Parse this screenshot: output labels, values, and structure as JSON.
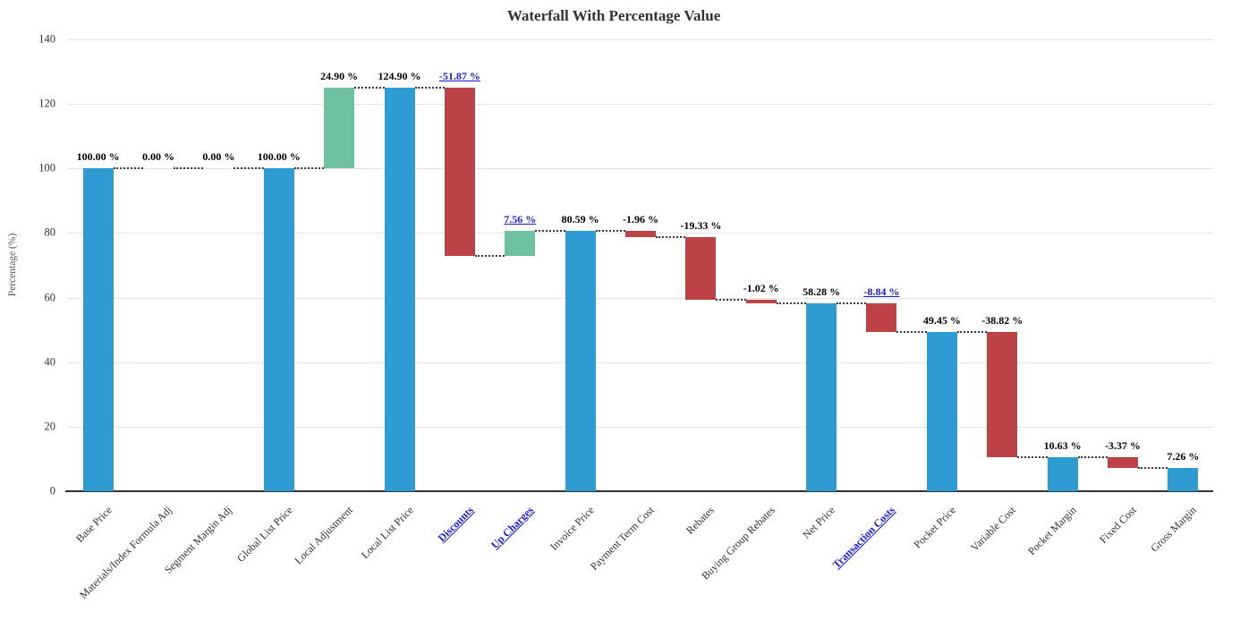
{
  "chart_data": {
    "type": "waterfall-bar",
    "title": "Waterfall With Percentage Value",
    "xlabel": "",
    "ylabel": "Percentage (%)",
    "ylim": [
      0,
      140
    ],
    "yticks": [
      0,
      20,
      40,
      60,
      80,
      100,
      120,
      140
    ],
    "grid": true,
    "legend": false,
    "colors": {
      "total_bar": "#2f9bd3",
      "increase_bar": "#6ec2a2",
      "decrease_bar": "#bd4245",
      "link_text": "#1b1be0",
      "gridline": "#e4e4e4",
      "axis_line": "#333333",
      "connector": "#3a3a3a",
      "value_label_text": "#000000",
      "tick_text": "#333333",
      "title_text": "#333333"
    },
    "bars": [
      {
        "category": "Base Price",
        "value": 100.0,
        "value_label": "100.00 %",
        "start": 0,
        "end": 100.0,
        "kind": "total",
        "link": false
      },
      {
        "category": "Materials/Index Formula Adj",
        "value": 0.0,
        "value_label": "0.00 %",
        "start": 100.0,
        "end": 100.0,
        "kind": "zero",
        "link": false
      },
      {
        "category": "Segment Margin Adj",
        "value": 0.0,
        "value_label": "0.00 %",
        "start": 100.0,
        "end": 100.0,
        "kind": "zero",
        "link": false
      },
      {
        "category": "Global List Price",
        "value": 100.0,
        "value_label": "100.00 %",
        "start": 0,
        "end": 100.0,
        "kind": "total",
        "link": false
      },
      {
        "category": "Local Adjustment",
        "value": 24.9,
        "value_label": "24.90 %",
        "start": 100.0,
        "end": 124.9,
        "kind": "increase",
        "link": false
      },
      {
        "category": "Local List Price",
        "value": 124.9,
        "value_label": "124.90 %",
        "start": 0,
        "end": 124.9,
        "kind": "total",
        "link": false
      },
      {
        "category": "Discounts",
        "value": -51.87,
        "value_label": "-51.87 %",
        "start": 124.9,
        "end": 73.03,
        "kind": "decrease",
        "link": true
      },
      {
        "category": "Up Charges",
        "value": 7.56,
        "value_label": "7.56 %",
        "start": 73.03,
        "end": 80.59,
        "kind": "increase",
        "link": true
      },
      {
        "category": "Invoice Price",
        "value": 80.59,
        "value_label": "80.59 %",
        "start": 0,
        "end": 80.59,
        "kind": "total",
        "link": false
      },
      {
        "category": "Payment Term Cost",
        "value": -1.96,
        "value_label": "-1.96 %",
        "start": 80.59,
        "end": 78.63,
        "kind": "decrease",
        "link": false
      },
      {
        "category": "Rebates",
        "value": -19.33,
        "value_label": "-19.33 %",
        "start": 78.63,
        "end": 59.3,
        "kind": "decrease",
        "link": false
      },
      {
        "category": "Buying Group Rebates",
        "value": -1.02,
        "value_label": "-1.02 %",
        "start": 59.3,
        "end": 58.28,
        "kind": "decrease",
        "link": false
      },
      {
        "category": "Net Price",
        "value": 58.28,
        "value_label": "58.28 %",
        "start": 0,
        "end": 58.28,
        "kind": "total",
        "link": false
      },
      {
        "category": "Transaction Costs",
        "value": -8.84,
        "value_label": "-8.84 %",
        "start": 58.28,
        "end": 49.44,
        "kind": "decrease",
        "link": true
      },
      {
        "category": "Pocket Price",
        "value": 49.45,
        "value_label": "49.45 %",
        "start": 0,
        "end": 49.45,
        "kind": "total",
        "link": false
      },
      {
        "category": "Variable Cost",
        "value": -38.82,
        "value_label": "-38.82 %",
        "start": 49.45,
        "end": 10.63,
        "kind": "decrease",
        "link": false
      },
      {
        "category": "Pocket Margin",
        "value": 10.63,
        "value_label": "10.63 %",
        "start": 0,
        "end": 10.63,
        "kind": "total",
        "link": false
      },
      {
        "category": "Fixed Cost",
        "value": -3.37,
        "value_label": "-3.37 %",
        "start": 10.63,
        "end": 7.26,
        "kind": "decrease",
        "link": false
      },
      {
        "category": "Gross Margin",
        "value": 7.26,
        "value_label": "7.26 %",
        "start": 0,
        "end": 7.26,
        "kind": "total",
        "link": false
      }
    ]
  }
}
